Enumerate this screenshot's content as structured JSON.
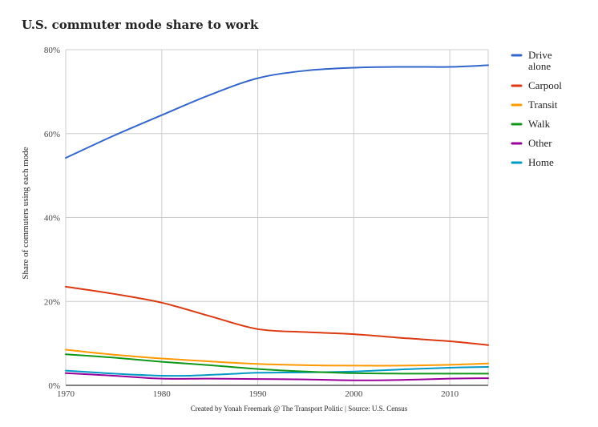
{
  "chart_data": {
    "type": "line",
    "title": "U.S. commuter mode share to work",
    "ylabel": "Share of commuters using each mode",
    "xlabel": "",
    "footer": "Created by Yonah Freemark @ The Transport Politic | Source: U.S. Census",
    "xlim": [
      1970,
      2014
    ],
    "ylim": [
      0,
      80
    ],
    "x_ticks": [
      1970,
      1980,
      1990,
      2000,
      2010
    ],
    "x_tick_labels": [
      "1970",
      "1980",
      "1990",
      "2000",
      "2010"
    ],
    "y_ticks": [
      0,
      20,
      40,
      60,
      80
    ],
    "y_tick_labels": [
      "0%",
      "20%",
      "40%",
      "60%",
      "80%"
    ],
    "grid": true,
    "legend_position": "right",
    "series": [
      {
        "name": "Drive alone",
        "legend_lines": [
          "Drive",
          "alone"
        ],
        "color": "#3366cc",
        "points": [
          [
            1970,
            54.2
          ],
          [
            1975,
            59.5
          ],
          [
            1980,
            64.4
          ],
          [
            1985,
            69.2
          ],
          [
            1990,
            73.2
          ],
          [
            1995,
            75.0
          ],
          [
            2000,
            75.7
          ],
          [
            2005,
            75.9
          ],
          [
            2010,
            75.9
          ],
          [
            2014,
            76.3
          ]
        ]
      },
      {
        "name": "Carpool",
        "legend_lines": [
          "Carpool"
        ],
        "color": "#dc3912",
        "points": [
          [
            1970,
            23.5
          ],
          [
            1975,
            21.8
          ],
          [
            1980,
            19.7
          ],
          [
            1985,
            16.5
          ],
          [
            1990,
            13.4
          ],
          [
            1995,
            12.7
          ],
          [
            2000,
            12.2
          ],
          [
            2005,
            11.3
          ],
          [
            2010,
            10.5
          ],
          [
            2014,
            9.6
          ]
        ]
      },
      {
        "name": "Transit",
        "legend_lines": [
          "Transit"
        ],
        "color": "#ff9900",
        "points": [
          [
            1970,
            8.5
          ],
          [
            1975,
            7.3
          ],
          [
            1980,
            6.4
          ],
          [
            1985,
            5.7
          ],
          [
            1990,
            5.1
          ],
          [
            1995,
            4.8
          ],
          [
            2000,
            4.7
          ],
          [
            2005,
            4.7
          ],
          [
            2010,
            4.9
          ],
          [
            2014,
            5.2
          ]
        ]
      },
      {
        "name": "Walk",
        "legend_lines": [
          "Walk"
        ],
        "color": "#109618",
        "points": [
          [
            1970,
            7.4
          ],
          [
            1975,
            6.6
          ],
          [
            1980,
            5.6
          ],
          [
            1985,
            4.8
          ],
          [
            1990,
            3.9
          ],
          [
            1995,
            3.3
          ],
          [
            2000,
            2.9
          ],
          [
            2005,
            2.8
          ],
          [
            2010,
            2.8
          ],
          [
            2014,
            2.8
          ]
        ]
      },
      {
        "name": "Other",
        "legend_lines": [
          "Other"
        ],
        "color": "#990099",
        "points": [
          [
            1970,
            2.9
          ],
          [
            1975,
            2.3
          ],
          [
            1980,
            1.6
          ],
          [
            1985,
            1.6
          ],
          [
            1990,
            1.5
          ],
          [
            1995,
            1.4
          ],
          [
            2000,
            1.2
          ],
          [
            2005,
            1.3
          ],
          [
            2010,
            1.6
          ],
          [
            2014,
            1.7
          ]
        ]
      },
      {
        "name": "Home",
        "legend_lines": [
          "Home"
        ],
        "color": "#0099c6",
        "points": [
          [
            1970,
            3.5
          ],
          [
            1975,
            2.8
          ],
          [
            1980,
            2.3
          ],
          [
            1983,
            2.3
          ],
          [
            1987,
            2.7
          ],
          [
            1990,
            3.0
          ],
          [
            1995,
            3.1
          ],
          [
            2000,
            3.3
          ],
          [
            2005,
            3.8
          ],
          [
            2010,
            4.2
          ],
          [
            2014,
            4.4
          ]
        ]
      }
    ]
  }
}
